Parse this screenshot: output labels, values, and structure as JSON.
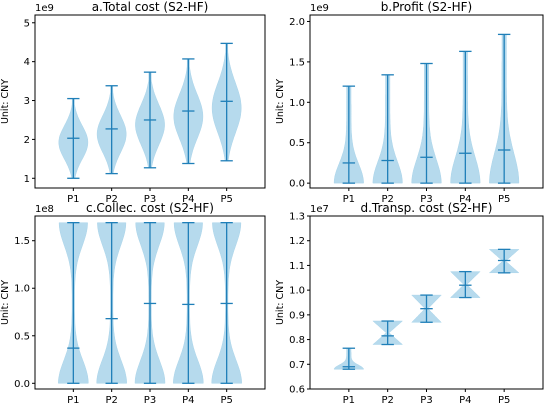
{
  "chart_data": [
    {
      "type": "violin",
      "title": "a.Total cost (S2-HF)",
      "ylabel": "Unit: CNY",
      "y_offset_label": "1e9",
      "categories": [
        "P1",
        "P2",
        "P3",
        "P4",
        "P5"
      ],
      "yticks": [
        1,
        2,
        3,
        4,
        5
      ],
      "ylim": [
        0.75,
        5.2
      ],
      "series": [
        {
          "min": 1.0,
          "max": 3.05,
          "median": 2.03,
          "shape": "mid"
        },
        {
          "min": 1.12,
          "max": 3.38,
          "median": 2.27,
          "shape": "mid"
        },
        {
          "min": 1.27,
          "max": 3.73,
          "median": 2.5,
          "shape": "mid"
        },
        {
          "min": 1.38,
          "max": 4.07,
          "median": 2.73,
          "shape": "mid"
        },
        {
          "min": 1.45,
          "max": 4.47,
          "median": 2.98,
          "shape": "mid"
        }
      ]
    },
    {
      "type": "violin",
      "title": "b.Profit (S2-HF)",
      "ylabel": "Unit: CNY",
      "y_offset_label": "1e9",
      "categories": [
        "P1",
        "P2",
        "P3",
        "P4",
        "P5"
      ],
      "yticks": [
        "0.0",
        "0.5",
        "1.0",
        "1.5",
        "2.0"
      ],
      "ylim": [
        -0.06,
        2.08
      ],
      "series": [
        {
          "min": 0.0,
          "max": 1.2,
          "median": 0.25,
          "shape": "bottom"
        },
        {
          "min": 0.0,
          "max": 1.34,
          "median": 0.28,
          "shape": "bottom"
        },
        {
          "min": 0.0,
          "max": 1.48,
          "median": 0.32,
          "shape": "bottom"
        },
        {
          "min": 0.0,
          "max": 1.63,
          "median": 0.37,
          "shape": "bottom"
        },
        {
          "min": 0.0,
          "max": 1.84,
          "median": 0.41,
          "shape": "bottom"
        }
      ]
    },
    {
      "type": "violin",
      "title": "c.Collec. cost (S2-HF)",
      "ylabel": "Unit: CNY",
      "y_offset_label": "1e8",
      "categories": [
        "P1",
        "P2",
        "P3",
        "P4",
        "P5"
      ],
      "yticks": [
        "0.0",
        "0.5",
        "1.0",
        "1.5"
      ],
      "ylim": [
        -0.06,
        1.76
      ],
      "series": [
        {
          "min": 0.0,
          "max": 1.69,
          "median": 0.37,
          "shape": "bimodal"
        },
        {
          "min": 0.0,
          "max": 1.69,
          "median": 0.68,
          "shape": "bimodal"
        },
        {
          "min": 0.0,
          "max": 1.69,
          "median": 0.84,
          "shape": "bimodal"
        },
        {
          "min": 0.0,
          "max": 1.69,
          "median": 0.83,
          "shape": "bimodal"
        },
        {
          "min": 0.0,
          "max": 1.69,
          "median": 0.84,
          "shape": "bimodal"
        }
      ]
    },
    {
      "type": "violin",
      "title": "d.Transp. cost (S2-HF)",
      "ylabel": "Unit: CNY",
      "y_offset_label": "1e7",
      "categories": [
        "P1",
        "P2",
        "P3",
        "P4",
        "P5"
      ],
      "yticks": [
        "0.6",
        "0.7",
        "0.8",
        "0.9",
        "1.0",
        "1.1",
        "1.2",
        "1.3"
      ],
      "ylim": [
        0.6,
        1.3
      ],
      "series": [
        {
          "min": 0.68,
          "max": 0.765,
          "median": 0.69,
          "shape": "bottom"
        },
        {
          "min": 0.78,
          "max": 0.875,
          "median": 0.815,
          "shape": "pinch"
        },
        {
          "min": 0.87,
          "max": 0.98,
          "median": 0.925,
          "shape": "pinch"
        },
        {
          "min": 0.97,
          "max": 1.075,
          "median": 1.02,
          "shape": "pinch"
        },
        {
          "min": 1.07,
          "max": 1.165,
          "median": 1.12,
          "shape": "pinch"
        }
      ]
    }
  ],
  "colors": {
    "violin_fill": "#a9d4ea",
    "violin_line": "#1f7fb8",
    "axis": "#000000"
  }
}
